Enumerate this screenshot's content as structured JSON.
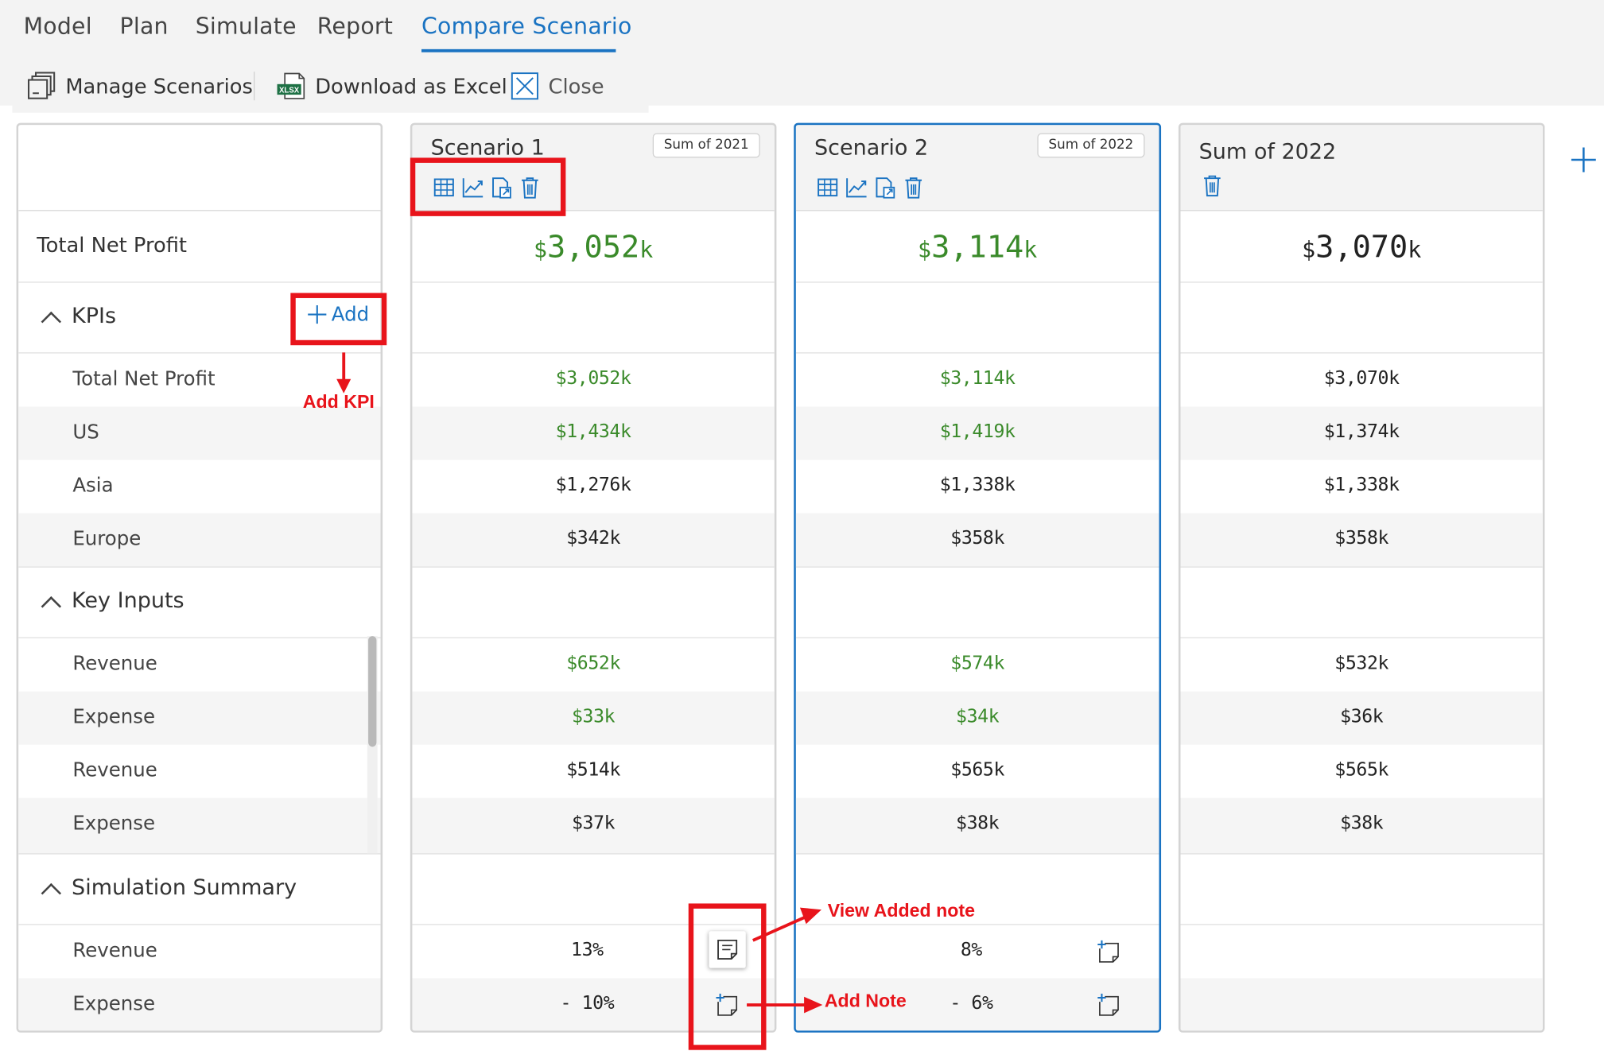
{
  "tabs": [
    {
      "label": "Model"
    },
    {
      "label": "Plan"
    },
    {
      "label": "Simulate"
    },
    {
      "label": "Report"
    },
    {
      "label": "Compare Scenario",
      "active": true
    }
  ],
  "toolbar": {
    "manage_label": "Manage Scenarios",
    "download_label": "Download as Excel",
    "download_icon_text": "XLSX",
    "close_label": "Close"
  },
  "left": {
    "total_label": "Total Net Profit",
    "kpis_label": "KPIs",
    "add_label": "Add",
    "kpi_rows": [
      "Total Net Profit",
      "US",
      "Asia",
      "Europe"
    ],
    "key_inputs_label": "Key Inputs",
    "input_rows": [
      "Revenue",
      "Expense",
      "Revenue",
      "Expense"
    ],
    "sim_label": "Simulation Summary",
    "sim_rows": [
      "Revenue",
      "Expense"
    ]
  },
  "scenarios": [
    {
      "title": "Scenario 1",
      "badge": "Sum of 2021",
      "total_cur": "$",
      "total_num": "3,052",
      "total_k": "k",
      "kpis": [
        "$3,052k",
        "$1,434k",
        "$1,276k",
        "$342k"
      ],
      "inputs": [
        "$652k",
        "$33k",
        "$514k",
        "$37k"
      ],
      "sim": [
        "13%",
        "- 10%"
      ]
    },
    {
      "title": "Scenario 2",
      "badge": "Sum of 2022",
      "total_cur": "$",
      "total_num": "3,114",
      "total_k": "k",
      "kpis": [
        "$3,114k",
        "$1,419k",
        "$1,338k",
        "$358k"
      ],
      "inputs": [
        "$574k",
        "$34k",
        "$565k",
        "$38k"
      ],
      "sim": [
        "8%",
        "- 6%"
      ]
    },
    {
      "title": "Sum of 2022",
      "total_cur": "$",
      "total_num": "3,070",
      "total_k": "k",
      "kpis": [
        "$3,070k",
        "$1,374k",
        "$1,338k",
        "$358k"
      ],
      "inputs": [
        "$532k",
        "$36k",
        "$565k",
        "$38k"
      ],
      "sim": [
        "",
        ""
      ]
    }
  ],
  "annotations": {
    "add_kpi": "Add KPI",
    "view_note": "View Added note",
    "add_note": "Add Note"
  },
  "colors": {
    "accent": "#1a73c2",
    "positive": "#3a8a2a",
    "annotation": "#e8141b"
  }
}
